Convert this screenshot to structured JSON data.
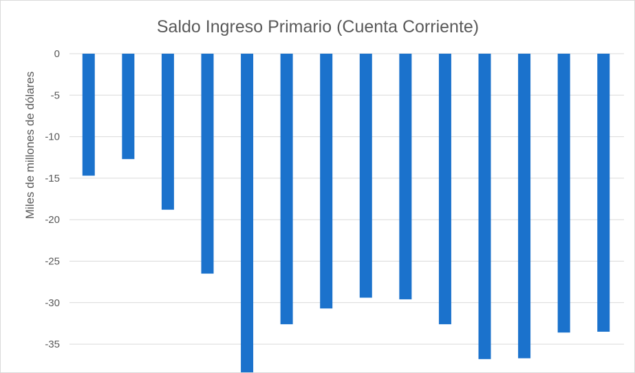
{
  "chart_data": {
    "type": "bar",
    "title": "Saldo Ingreso Primario (Cuenta Corriente)",
    "xlabel": "",
    "ylabel": "Miles de millones de dólares",
    "categories": [
      "",
      "",
      "",
      "",
      "",
      "",
      "",
      "",
      "",
      "",
      "",
      "",
      "",
      ""
    ],
    "series": [
      {
        "values": [
          -14.7,
          -12.7,
          -18.8,
          -26.5,
          -38.5,
          -32.6,
          -30.7,
          -29.4,
          -29.6,
          -32.6,
          -36.8,
          -36.7,
          -33.6,
          -33.5
        ]
      }
    ],
    "ylim": [
      -38,
      0
    ],
    "yticks": [
      0,
      -5,
      -10,
      -15,
      -20,
      -25,
      -30,
      -35
    ],
    "ytick_labels": [
      "0",
      "-5",
      "-10",
      "-15",
      "-20",
      "-25",
      "-30",
      "-35"
    ],
    "grid": true,
    "legend": "none",
    "colors": {
      "bar": "#1b72cc",
      "grid": "#d9d9d9",
      "text": "#595959"
    }
  }
}
